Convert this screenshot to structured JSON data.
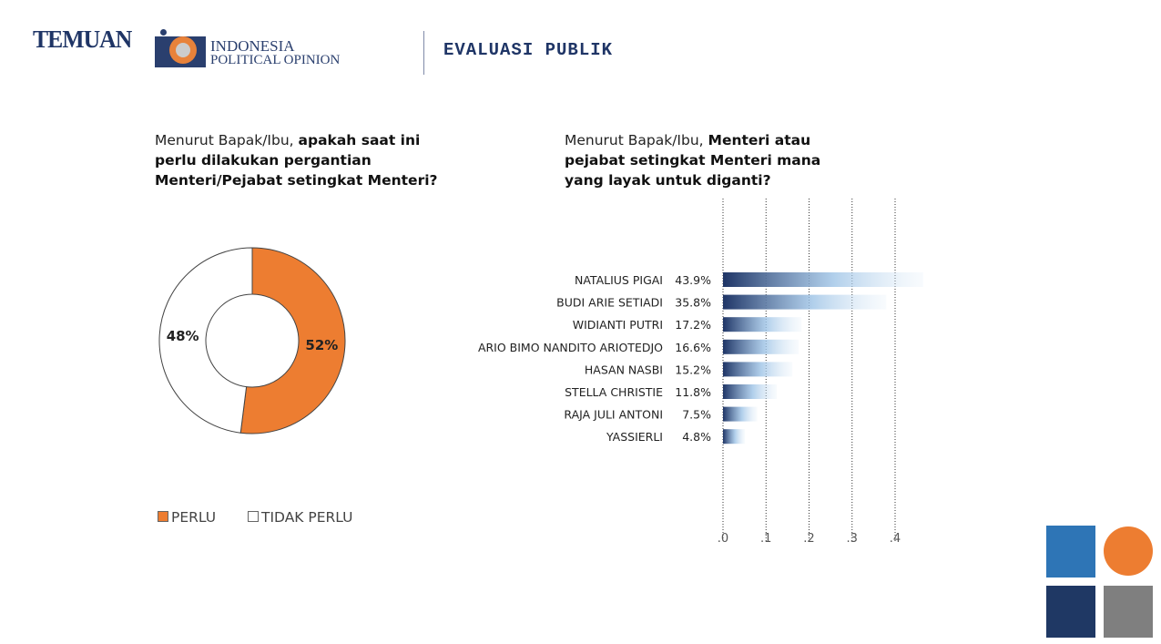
{
  "header": {
    "brand": "TEMUAN",
    "org_line1": "INDONESIA",
    "org_line2": "POLITICAL OPINION",
    "section": "EVALUASI PUBLIK"
  },
  "chart_data": [
    {
      "type": "pie",
      "donut": true,
      "question_plain": "Menurut Bapak/Ibu, ",
      "question_bold": "apakah saat ini perlu dilakukan pergantian Menteri/Pejabat setingkat Menteri?",
      "slices": [
        {
          "label": "PERLU",
          "value": 52,
          "display": "52%",
          "color": "#ed7d31"
        },
        {
          "label": "TIDAK PERLU",
          "value": 48,
          "display": "48%",
          "color": "#ffffff"
        }
      ],
      "legend": "bottom"
    },
    {
      "type": "bar",
      "orientation": "horizontal",
      "question_plain": "Menurut Bapak/Ibu, ",
      "question_bold": "Menteri atau pejabat setingkat Menteri mana yang layak untuk diganti?",
      "categories": [
        "NATALIUS PIGAI",
        "BUDI ARIE SETIADI",
        "WIDIANTI PUTRI",
        "ARIO BIMO NANDITO ARIOTEDJO",
        "HASAN NASBI",
        "STELLA CHRISTIE",
        "RAJA JULI ANTONI",
        "YASSIERLI"
      ],
      "values": [
        0.439,
        0.358,
        0.172,
        0.166,
        0.152,
        0.118,
        0.075,
        0.048
      ],
      "labels": [
        "43.9%",
        "35.8%",
        "17.2%",
        "16.6%",
        "15.2%",
        "11.8%",
        "7.5%",
        "4.8%"
      ],
      "xticks": [
        ".0",
        ".1",
        ".2",
        ".3",
        ".4"
      ],
      "xlim": [
        0,
        0.44
      ],
      "grid": "vertical-dotted",
      "bar_color": "#1f3566"
    }
  ],
  "decor_colors": [
    "#2e75b6",
    "#ed7d31",
    "#1f3864",
    "#7f7f7f"
  ]
}
